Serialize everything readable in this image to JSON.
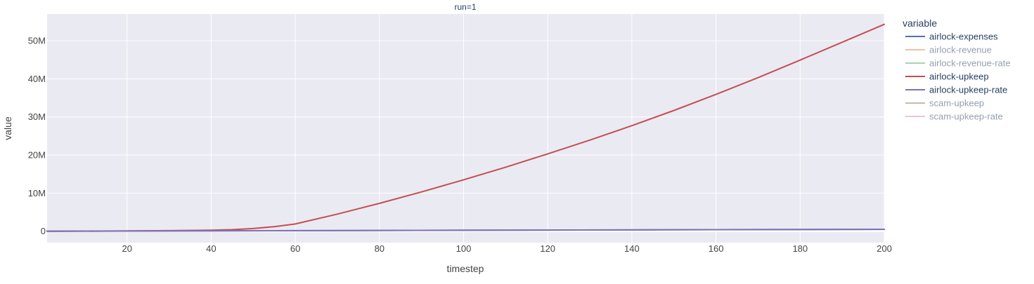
{
  "chart_data": {
    "type": "line",
    "title": "run=1",
    "xlabel": "timestep",
    "ylabel": "value",
    "xlim": [
      1,
      200
    ],
    "ylim": [
      -3000000,
      57000000
    ],
    "grid": true,
    "x_ticks": [
      20,
      40,
      60,
      80,
      100,
      120,
      140,
      160,
      180,
      200
    ],
    "y_ticks": [
      0,
      10000000,
      20000000,
      30000000,
      40000000,
      50000000
    ],
    "y_tick_labels": [
      "0",
      "10M",
      "20M",
      "30M",
      "40M",
      "50M"
    ],
    "legend": {
      "title": "variable",
      "position": "right"
    },
    "series": [
      {
        "name": "airlock-expenses",
        "color": "#4c72b0",
        "visible": true,
        "x": [
          1,
          200
        ],
        "y": [
          0,
          500000
        ]
      },
      {
        "name": "airlock-revenue",
        "color": "#dd8452",
        "visible": false,
        "x": [],
        "y": []
      },
      {
        "name": "airlock-revenue-rate",
        "color": "#55a868",
        "visible": false,
        "x": [],
        "y": []
      },
      {
        "name": "airlock-upkeep",
        "color": "#c44e52",
        "visible": true,
        "x": [
          1,
          10,
          20,
          30,
          40,
          45,
          50,
          55,
          60,
          70,
          80,
          90,
          100,
          110,
          120,
          130,
          140,
          150,
          160,
          170,
          180,
          190,
          200
        ],
        "y": [
          0,
          20000,
          80000,
          150000,
          250000,
          400000,
          700000,
          1200000,
          1900000,
          4500000,
          7300000,
          10300000,
          13500000,
          16800000,
          20300000,
          23900000,
          27700000,
          31700000,
          35900000,
          40300000,
          44900000,
          49600000,
          54300000
        ]
      },
      {
        "name": "airlock-upkeep-rate",
        "color": "#8172b3",
        "visible": true,
        "x": [
          1,
          200
        ],
        "y": [
          0,
          500000
        ]
      },
      {
        "name": "scam-upkeep",
        "color": "#937860",
        "visible": false,
        "x": [],
        "y": []
      },
      {
        "name": "scam-upkeep-rate",
        "color": "#da8bc3",
        "visible": false,
        "x": [],
        "y": []
      }
    ]
  }
}
